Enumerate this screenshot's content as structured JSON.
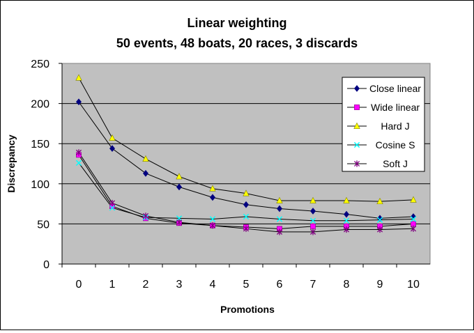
{
  "chart_data": {
    "type": "line",
    "title": "Linear weighting",
    "subtitle": "50 events, 48 boats, 20 races, 3 discards",
    "xlabel": "Promotions",
    "ylabel": "Discrepancy",
    "x": [
      0,
      1,
      2,
      3,
      4,
      5,
      6,
      7,
      8,
      9,
      10
    ],
    "ylim": [
      0,
      250
    ],
    "yticks": [
      0,
      50,
      100,
      150,
      200,
      250
    ],
    "grid": "horizontal",
    "plot_background": "#c0c0c0",
    "legend_position": "top-right",
    "series": [
      {
        "name": "Close linear",
        "color": "#000080",
        "marker": "diamond",
        "values": [
          202,
          144,
          113,
          96,
          83,
          74,
          69,
          66,
          62,
          57,
          59
        ]
      },
      {
        "name": "Wide linear",
        "color": "#ff00ff",
        "marker": "square",
        "values": [
          136,
          72,
          57,
          51,
          48,
          46,
          44,
          47,
          47,
          47,
          50
        ]
      },
      {
        "name": "Hard J",
        "color": "#ffff00",
        "marker": "triangle",
        "values": [
          232,
          157,
          131,
          109,
          94,
          88,
          79,
          79,
          79,
          78,
          80
        ]
      },
      {
        "name": "Cosine S",
        "color": "#00ffff",
        "marker": "x",
        "values": [
          126,
          70,
          58,
          57,
          56,
          59,
          56,
          54,
          54,
          55,
          56
        ]
      },
      {
        "name": "Soft J",
        "color": "#800080",
        "marker": "star",
        "values": [
          139,
          76,
          60,
          52,
          48,
          44,
          40,
          40,
          43,
          43,
          44
        ]
      }
    ]
  }
}
